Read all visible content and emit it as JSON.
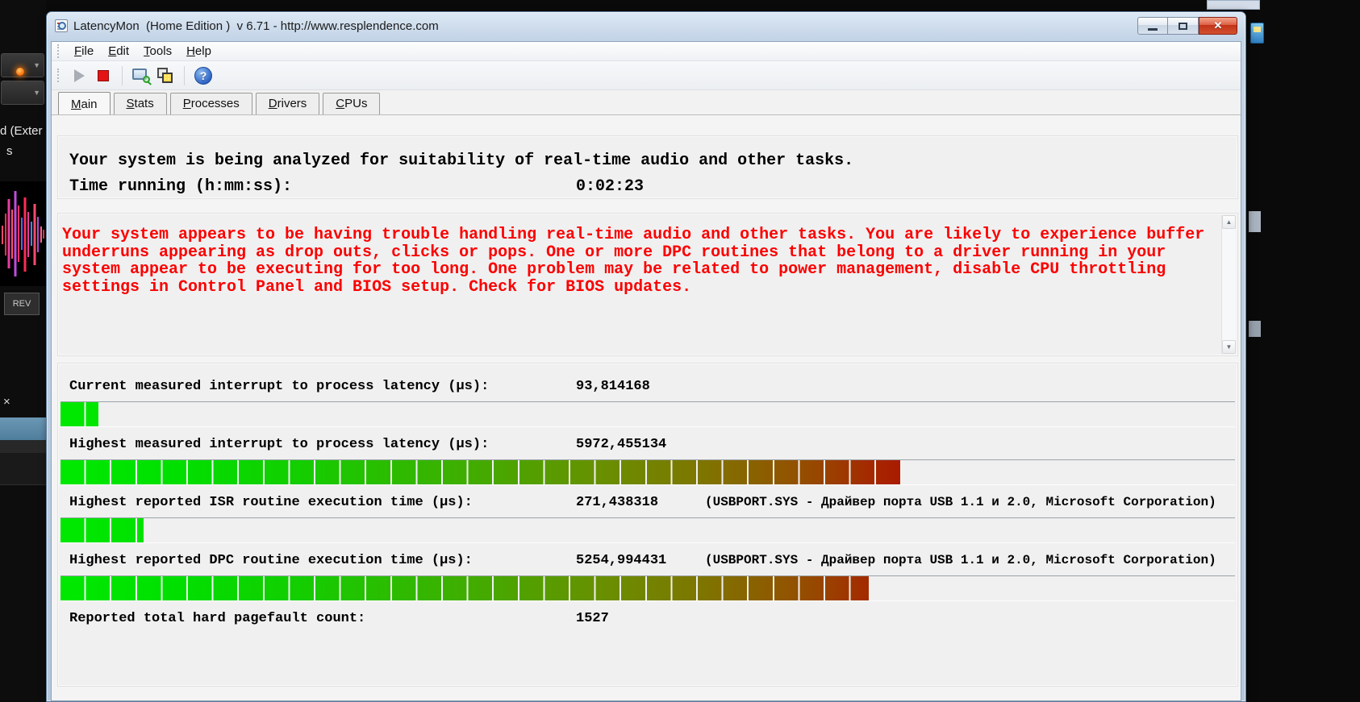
{
  "window": {
    "title": "LatencyMon  (Home Edition )  v 6.71 - http://www.resplendence.com",
    "controls": {
      "close_glyph": "✕"
    }
  },
  "glyphs": {
    "help": "?",
    "scroll_up": "▲",
    "scroll_down": "▼",
    "chevron_down": "▼",
    "bg_close": "×"
  },
  "menu": {
    "items": [
      {
        "label": "File",
        "u": "F",
        "rest": "ile"
      },
      {
        "label": "Edit",
        "u": "E",
        "rest": "dit"
      },
      {
        "label": "Tools",
        "u": "T",
        "rest": "ools"
      },
      {
        "label": "Help",
        "u": "H",
        "rest": "elp"
      }
    ]
  },
  "tabs": [
    {
      "label": "Main",
      "u": "M",
      "rest": "ain",
      "active": true
    },
    {
      "label": "Stats",
      "u": "S",
      "rest": "tats",
      "active": false
    },
    {
      "label": "Processes",
      "u": "P",
      "rest": "rocesses",
      "active": false
    },
    {
      "label": "Drivers",
      "u": "D",
      "rest": "rivers",
      "active": false
    },
    {
      "label": "CPUs",
      "u": "C",
      "rest": "PUs",
      "active": false
    }
  ],
  "main": {
    "status_line": "Your system is being analyzed for suitability of real-time audio and other tasks.",
    "time_running": {
      "label": "Time running (h:mm:ss):",
      "value": "0:02:23"
    },
    "warning_text": "Your system appears to be having trouble handling real-time audio and other tasks. You are likely to experience buffer underruns appearing as drop outs, clicks or pops. One or more DPC routines that belong to a driver running in your system appear to be executing for too long. One problem may be related to power management, disable CPU throttling settings in Control Panel and BIOS setup. Check for BIOS updates.",
    "warning_color": "#fb0000",
    "measurements": [
      {
        "label": "Current measured interrupt to process latency (µs):",
        "value": "93,814168",
        "driver": "",
        "bar_percent": 3.2
      },
      {
        "label": "Highest measured interrupt to process latency (µs):",
        "value": "5972,455134",
        "driver": "",
        "bar_percent": 71.5
      },
      {
        "label": "Highest reported ISR routine execution time (µs):",
        "value": "271,438318",
        "driver": "(USBPORT.SYS - Драйвер порта USB 1.1 и 2.0, Microsoft Corporation)",
        "bar_percent": 7.1
      },
      {
        "label": "Highest reported DPC routine execution time (µs):",
        "value": "5254,994431",
        "driver": "(USBPORT.SYS - Драйвер порта USB 1.1 и 2.0, Microsoft Corporation)",
        "bar_percent": 68.8
      },
      {
        "label": "Reported total hard pagefault count:",
        "value": "1527",
        "driver": "",
        "bar_percent": null
      }
    ],
    "bar_colors": {
      "start": "#00e800",
      "mid": "#6a8e00",
      "end": "#b80000"
    }
  },
  "background_app": {
    "label_fragment_1": "d (Exter",
    "label_fragment_2": "s",
    "rev_label": "REV"
  }
}
